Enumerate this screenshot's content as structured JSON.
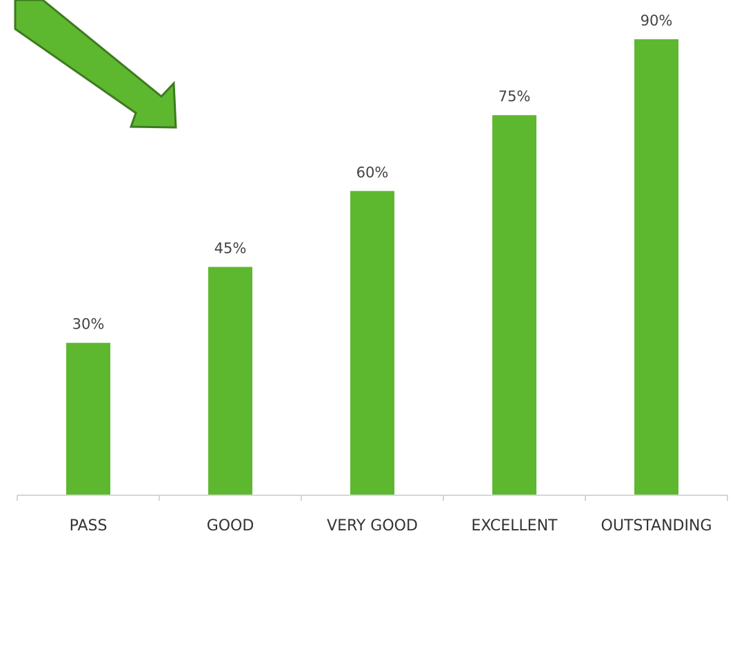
{
  "colors": {
    "bar": "#5db82f",
    "axis": "#c8c8c8",
    "arrow_fill": "#5db82f",
    "arrow_stroke": "#3d7a1f"
  },
  "decoration": {
    "arrow_icon": "arrow-down-right-icon"
  },
  "chart_data": {
    "type": "bar",
    "categories": [
      "PASS",
      "GOOD",
      "VERY GOOD",
      "EXCELLENT",
      "OUTSTANDING"
    ],
    "values": [
      30,
      45,
      60,
      75,
      90
    ],
    "data_labels": [
      "30%",
      "45%",
      "60%",
      "75%",
      "90%"
    ],
    "title": "",
    "xlabel": "",
    "ylabel": "",
    "ylim": [
      0,
      90
    ],
    "grid": false,
    "legend": "none"
  }
}
